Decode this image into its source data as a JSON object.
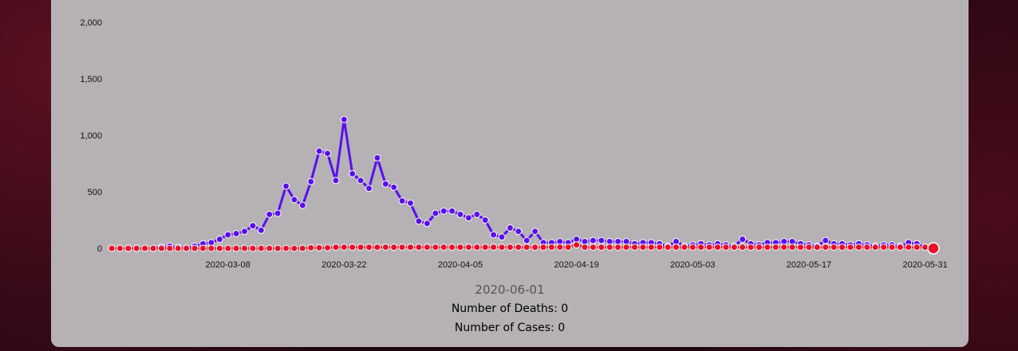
{
  "colors": {
    "cases": "#5a0ff0",
    "deaths": "#e8102a",
    "panel": "#b5b1b5"
  },
  "info": {
    "date": "2020-06-01",
    "deaths_label": "Number of Deaths: 0",
    "cases_label": "Number of Cases: 0"
  },
  "chart_data": {
    "type": "line",
    "title": "",
    "xlabel": "",
    "ylabel": "",
    "x_start": "2020-02-23",
    "x_end": "2020-06-01",
    "x_ticks": [
      "2020-03-08",
      "2020-03-22",
      "2020-04-05",
      "2020-04-19",
      "2020-05-03",
      "2020-05-17",
      "2020-05-31"
    ],
    "y_ticks": [
      0,
      500,
      1000,
      1500,
      2000
    ],
    "y_tick_labels": [
      "0",
      "500",
      "1,000",
      "1,500",
      "2,000"
    ],
    "ylim": [
      0,
      2000
    ],
    "grid": false,
    "legend": "none",
    "series": [
      {
        "name": "cases",
        "values": [
          0,
          0,
          0,
          0,
          0,
          0,
          10,
          20,
          10,
          0,
          20,
          40,
          50,
          80,
          120,
          130,
          150,
          200,
          160,
          300,
          310,
          550,
          430,
          380,
          590,
          860,
          840,
          600,
          1140,
          660,
          600,
          530,
          800,
          570,
          540,
          420,
          400,
          240,
          220,
          310,
          330,
          330,
          300,
          270,
          300,
          250,
          120,
          100,
          180,
          150,
          70,
          150,
          50,
          50,
          60,
          50,
          80,
          60,
          70,
          70,
          60,
          60,
          60,
          40,
          50,
          50,
          40,
          20,
          60,
          20,
          30,
          40,
          30,
          40,
          30,
          20,
          80,
          40,
          30,
          50,
          50,
          60,
          60,
          40,
          30,
          20,
          70,
          40,
          40,
          30,
          40,
          30,
          20,
          30,
          30,
          20,
          50,
          40,
          10,
          0
        ],
        "highlight_last": false
      },
      {
        "name": "deaths",
        "values": [
          0,
          0,
          0,
          0,
          0,
          0,
          0,
          0,
          0,
          0,
          0,
          0,
          0,
          0,
          0,
          0,
          0,
          0,
          0,
          0,
          0,
          0,
          0,
          0,
          5,
          5,
          5,
          10,
          10,
          10,
          10,
          10,
          10,
          10,
          10,
          10,
          10,
          10,
          10,
          10,
          10,
          10,
          10,
          10,
          10,
          10,
          10,
          10,
          10,
          10,
          10,
          10,
          10,
          10,
          10,
          10,
          30,
          10,
          10,
          10,
          10,
          10,
          10,
          10,
          10,
          10,
          10,
          10,
          10,
          10,
          10,
          10,
          10,
          10,
          10,
          10,
          10,
          10,
          10,
          10,
          10,
          10,
          10,
          10,
          10,
          10,
          10,
          10,
          10,
          10,
          10,
          10,
          10,
          10,
          10,
          10,
          10,
          10,
          10,
          0
        ],
        "highlight_last": true
      }
    ]
  }
}
